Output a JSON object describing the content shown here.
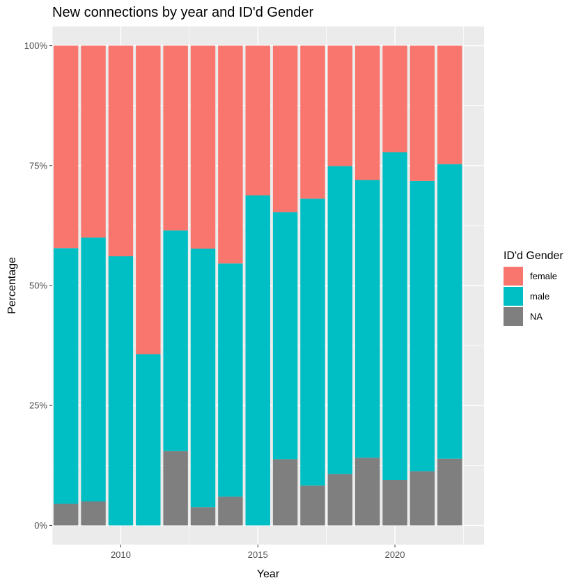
{
  "chart_data": {
    "type": "bar",
    "stacked": "percent",
    "title": "New connections by year and ID'd Gender",
    "xlabel": "Year",
    "ylabel": "Percentage",
    "x": [
      2008,
      2009,
      2010,
      2011,
      2012,
      2013,
      2014,
      2015,
      2016,
      2017,
      2018,
      2019,
      2020,
      2021,
      2022
    ],
    "xlim": [
      2007.5,
      2023.25
    ],
    "x_ticks": [
      2010,
      2015,
      2020
    ],
    "x_tick_labels": [
      "2010",
      "2015",
      "2020"
    ],
    "ylim": [
      -0.04,
      1.04
    ],
    "y_ticks": [
      0,
      0.25,
      0.5,
      0.75,
      1.0
    ],
    "y_tick_labels": [
      "0%",
      "25%",
      "50%",
      "75%",
      "100%"
    ],
    "grid": true,
    "legend": {
      "title": "ID'd Gender",
      "position": "right"
    },
    "series": [
      {
        "name": "NA",
        "color": "#7f7f7f",
        "values": [
          0.045,
          0.05,
          0.0,
          0.0,
          0.155,
          0.038,
          0.06,
          0.0,
          0.138,
          0.083,
          0.107,
          0.141,
          0.095,
          0.113,
          0.139
        ]
      },
      {
        "name": "male",
        "color": "#00bfc4",
        "values": [
          0.533,
          0.55,
          0.561,
          0.357,
          0.46,
          0.539,
          0.486,
          0.688,
          0.515,
          0.598,
          0.642,
          0.579,
          0.683,
          0.605,
          0.614
        ]
      },
      {
        "name": "female",
        "color": "#f8766d",
        "values": [
          0.422,
          0.4,
          0.439,
          0.643,
          0.385,
          0.423,
          0.454,
          0.312,
          0.347,
          0.319,
          0.251,
          0.28,
          0.222,
          0.282,
          0.247
        ]
      }
    ],
    "legend_order": [
      "female",
      "male",
      "NA"
    ]
  }
}
